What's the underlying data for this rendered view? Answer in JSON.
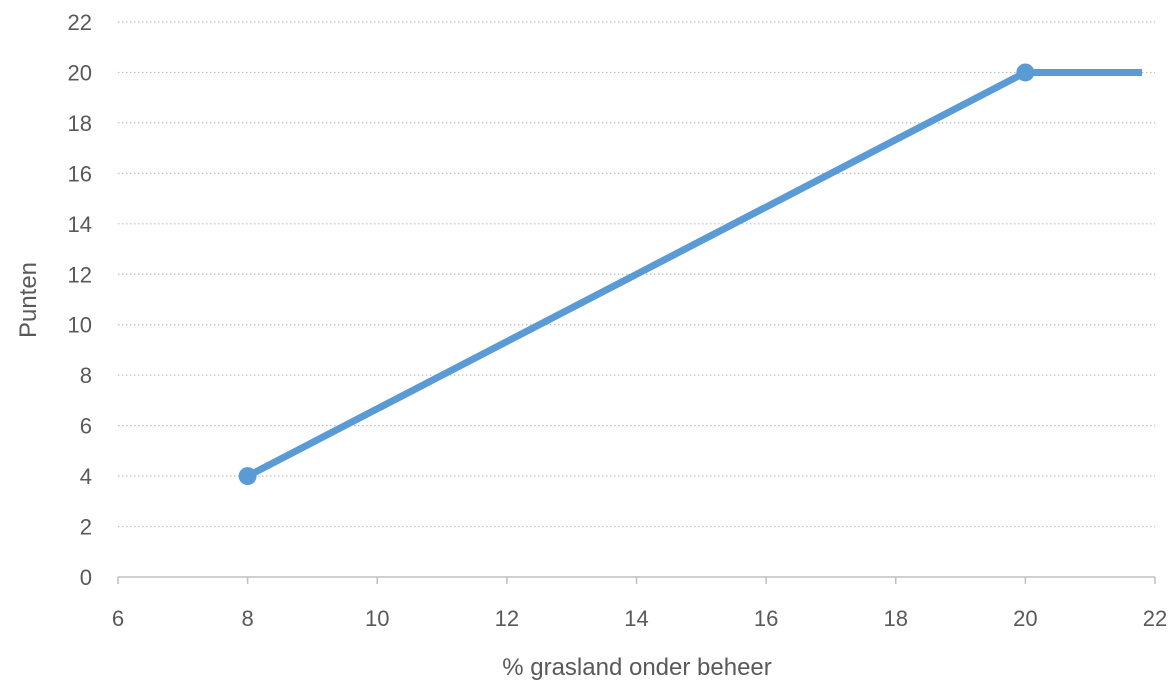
{
  "chart_data": {
    "type": "line",
    "title": "",
    "xlabel": "% grasland onder beheer",
    "ylabel": "Punten",
    "xlim": [
      6,
      22
    ],
    "ylim": [
      0,
      22
    ],
    "x_ticks": [
      6,
      8,
      10,
      12,
      14,
      16,
      18,
      20,
      22
    ],
    "y_ticks": [
      0,
      2,
      4,
      6,
      8,
      10,
      12,
      14,
      16,
      18,
      20,
      22
    ],
    "grid": "horizontal dotted",
    "legend": "none",
    "series": [
      {
        "color": "#5b9bd5",
        "points": [
          {
            "x": 8,
            "y": 4,
            "marker": true
          },
          {
            "x": 20,
            "y": 20,
            "marker": true
          },
          {
            "x": 21.8,
            "y": 20,
            "marker": false
          }
        ]
      }
    ]
  },
  "colors": {
    "line": "#5b9bd5",
    "grid": "#bfbfbf",
    "axis": "#bfbfbf",
    "text": "#595959"
  }
}
